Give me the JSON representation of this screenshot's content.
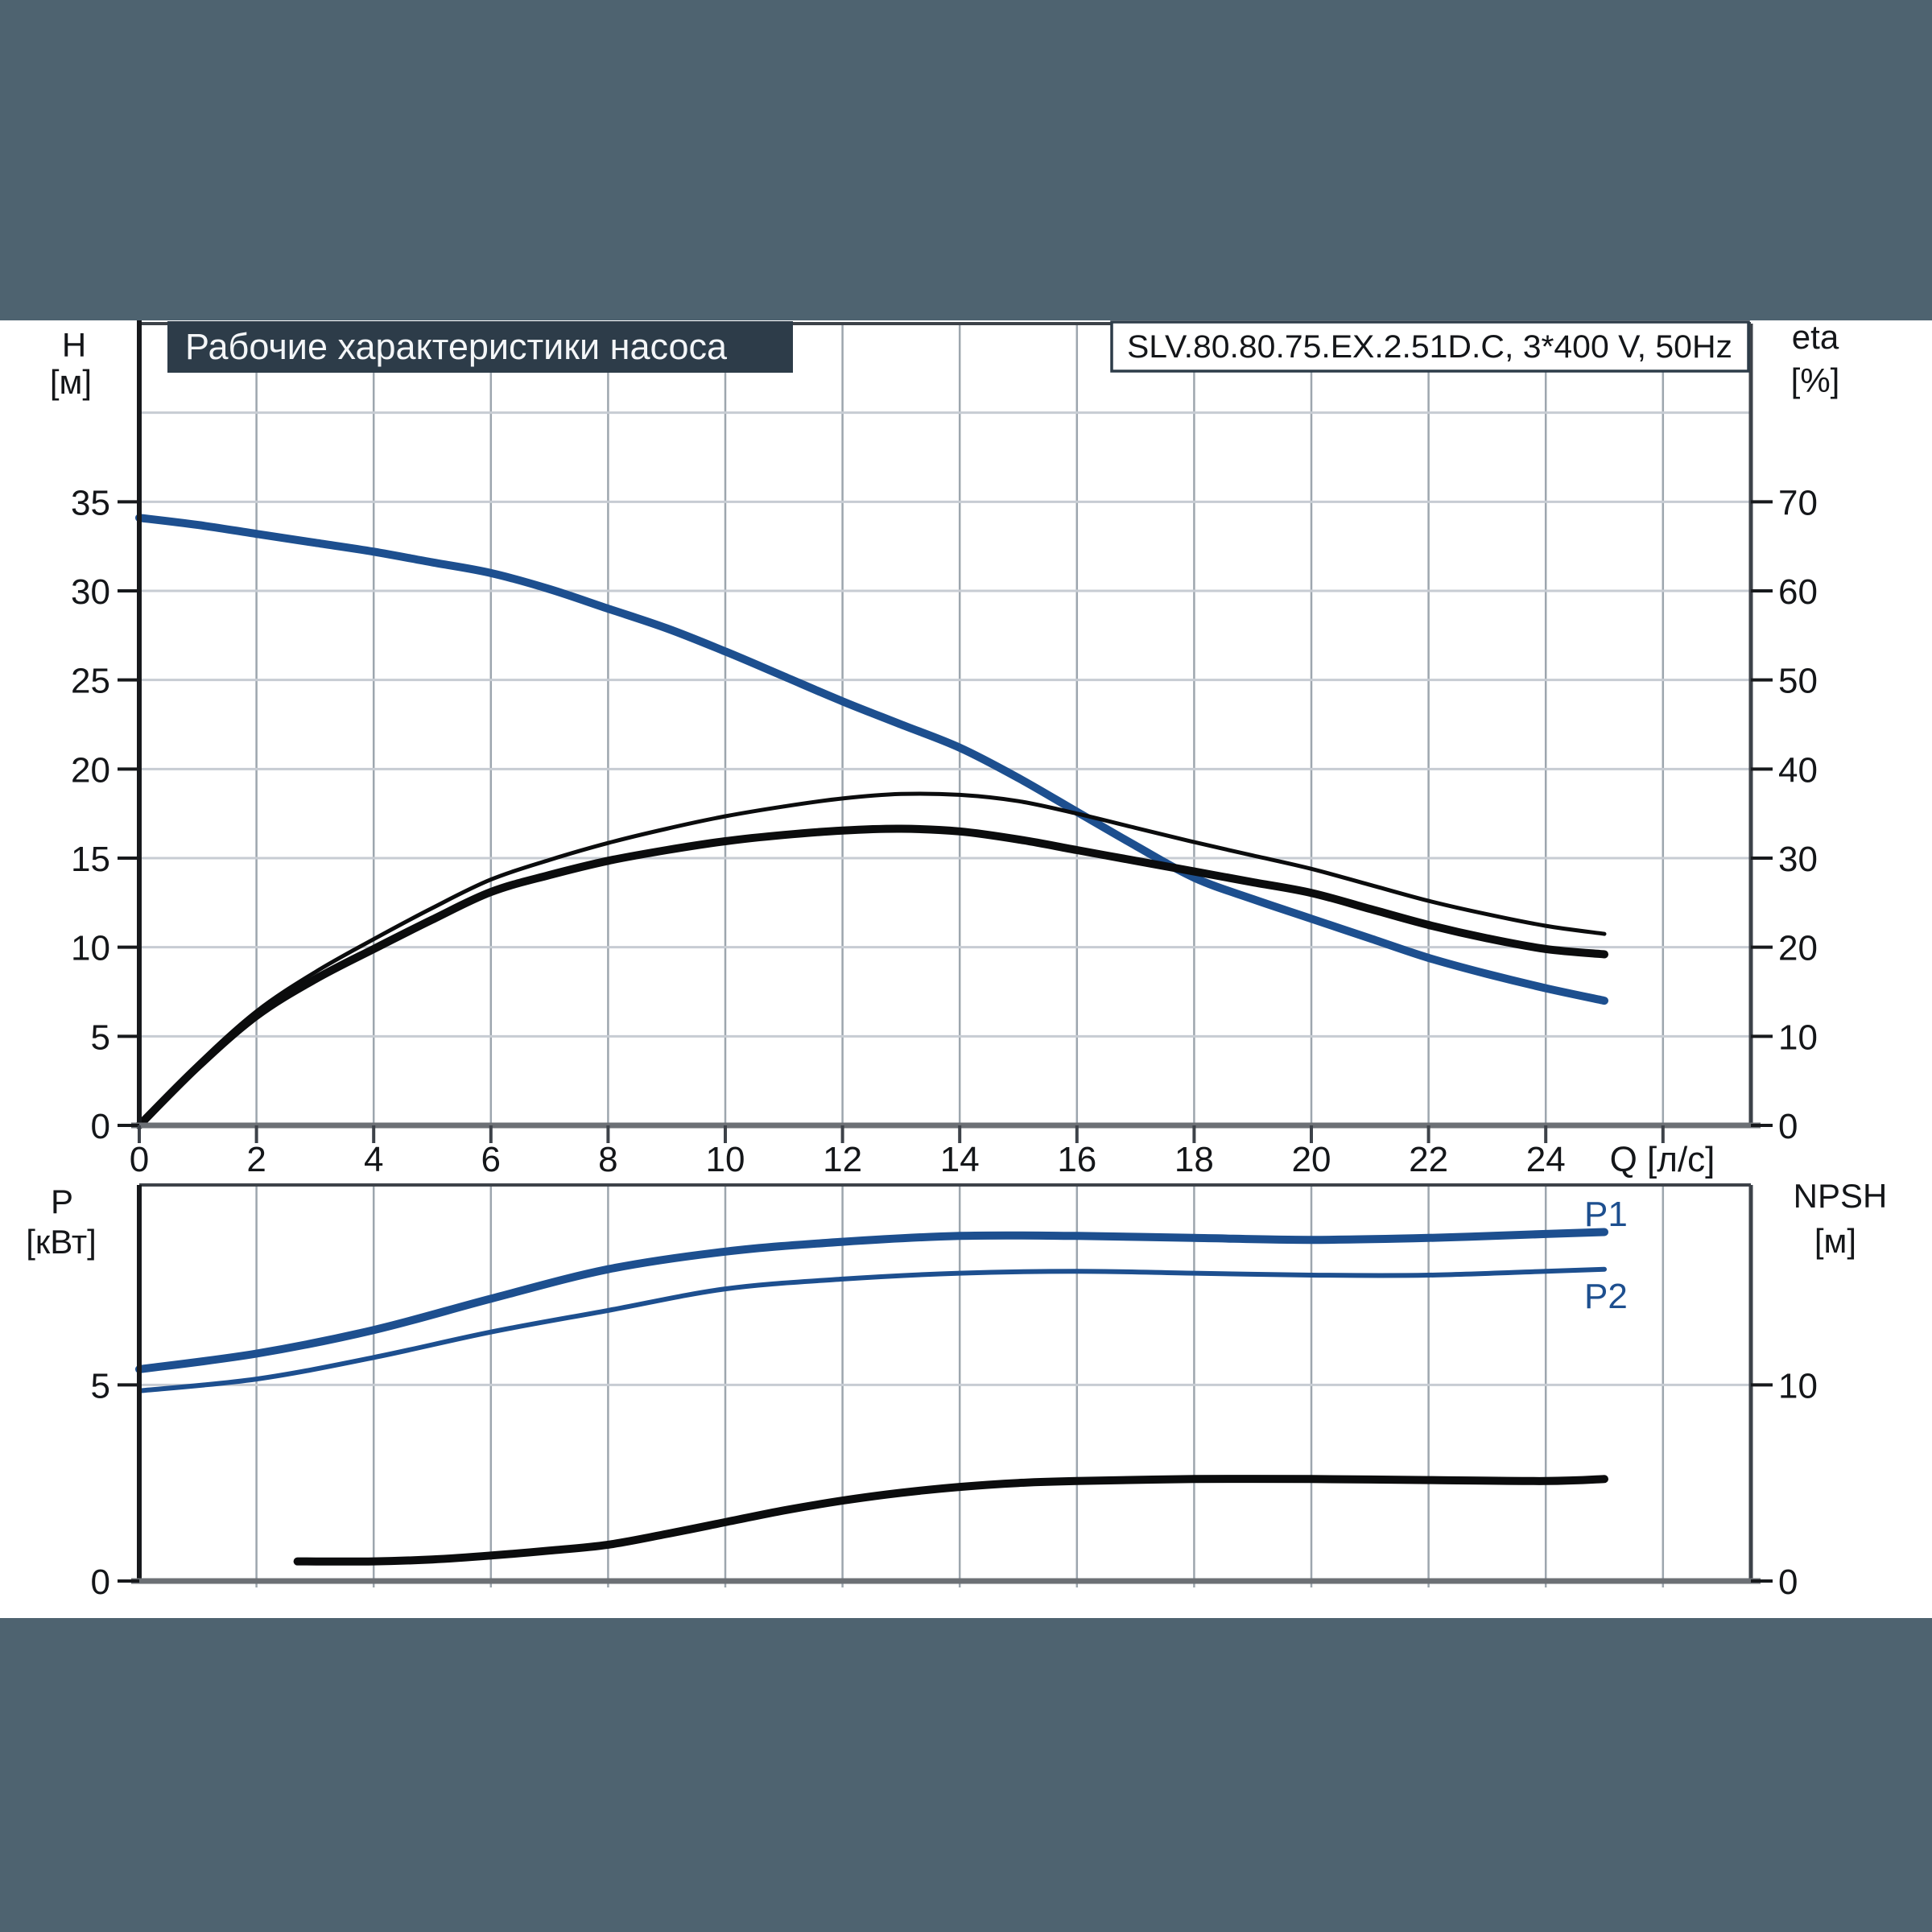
{
  "header": {
    "title": "Рабочие характеристики насоса",
    "pump_model": "SLV.80.80.75.EX.2.51D.C, 3*400 V, 50Hz"
  },
  "colors": {
    "background": "#4e6370",
    "badge": "#2d3c49",
    "panel": "#ffffff",
    "curve_blue": "#1d4f8f",
    "curve_black": "#0b0c0d",
    "grid_h": "#c7ccd3",
    "grid_v": "#9da6ae",
    "frame": "#3d4249",
    "axis_left": "#17191c",
    "axis_bottom": "#6c7075",
    "text": "#141619"
  },
  "chart_data": [
    {
      "id": "head-efficiency",
      "type": "line",
      "x_axis": {
        "label": "Q [л/с]",
        "min": 0,
        "max": 27.5,
        "tick_labels": [
          0,
          2,
          4,
          6,
          8,
          10,
          12,
          14,
          16,
          18,
          20,
          22,
          24
        ]
      },
      "y_left": {
        "name": "H",
        "unit": "[м]",
        "min": 0,
        "max": 45,
        "tick_labels": [
          0,
          5,
          10,
          15,
          20,
          25,
          30,
          35
        ]
      },
      "y_right": {
        "name": "eta",
        "unit": "[%]",
        "min": 0,
        "max": 90,
        "tick_labels": [
          0,
          10,
          20,
          30,
          40,
          50,
          60,
          70
        ]
      },
      "grid": true,
      "series": [
        {
          "name": "H",
          "axis": "left",
          "color": "blue",
          "width": 10,
          "points": [
            [
              0,
              34.1
            ],
            [
              1,
              33.7
            ],
            [
              2,
              33.2
            ],
            [
              3,
              32.7
            ],
            [
              4,
              32.2
            ],
            [
              5,
              31.6
            ],
            [
              6,
              31.0
            ],
            [
              7,
              30.1
            ],
            [
              8,
              29.0
            ],
            [
              9,
              27.9
            ],
            [
              10,
              26.6
            ],
            [
              11,
              25.2
            ],
            [
              12,
              23.8
            ],
            [
              13,
              22.5
            ],
            [
              14,
              21.2
            ],
            [
              15,
              19.5
            ],
            [
              16,
              17.6
            ],
            [
              17,
              15.7
            ],
            [
              18,
              13.9
            ],
            [
              19,
              12.7
            ],
            [
              20,
              11.6
            ],
            [
              21,
              10.5
            ],
            [
              22,
              9.4
            ],
            [
              23,
              8.5
            ],
            [
              24,
              7.7
            ],
            [
              25,
              7.0
            ]
          ]
        },
        {
          "name": "eta1",
          "axis": "right",
          "color": "black",
          "width": 5,
          "points": [
            [
              0,
              0
            ],
            [
              1,
              6.9
            ],
            [
              2,
              12.8
            ],
            [
              3,
              17.2
            ],
            [
              4,
              20.9
            ],
            [
              5,
              24.4
            ],
            [
              6,
              27.6
            ],
            [
              7,
              29.8
            ],
            [
              8,
              31.7
            ],
            [
              9,
              33.3
            ],
            [
              10,
              34.7
            ],
            [
              11,
              35.8
            ],
            [
              12,
              36.7
            ],
            [
              13,
              37.2
            ],
            [
              14,
              37.1
            ],
            [
              15,
              36.4
            ],
            [
              16,
              35.0
            ],
            [
              17,
              33.4
            ],
            [
              18,
              31.8
            ],
            [
              19,
              30.3
            ],
            [
              20,
              28.8
            ],
            [
              21,
              27.0
            ],
            [
              22,
              25.2
            ],
            [
              23,
              23.7
            ],
            [
              24,
              22.4
            ],
            [
              25,
              21.5
            ]
          ]
        },
        {
          "name": "eta2",
          "axis": "right",
          "color": "black",
          "width": 10,
          "points": [
            [
              0,
              0
            ],
            [
              1,
              6.6
            ],
            [
              2,
              12.3
            ],
            [
              3,
              16.4
            ],
            [
              4,
              19.8
            ],
            [
              5,
              23.1
            ],
            [
              6,
              26.2
            ],
            [
              7,
              28.1
            ],
            [
              8,
              29.7
            ],
            [
              9,
              30.9
            ],
            [
              10,
              31.9
            ],
            [
              11,
              32.6
            ],
            [
              12,
              33.1
            ],
            [
              13,
              33.3
            ],
            [
              14,
              33.0
            ],
            [
              15,
              32.1
            ],
            [
              16,
              30.9
            ],
            [
              17,
              29.7
            ],
            [
              18,
              28.5
            ],
            [
              19,
              27.3
            ],
            [
              20,
              26.1
            ],
            [
              21,
              24.3
            ],
            [
              22,
              22.5
            ],
            [
              23,
              21.0
            ],
            [
              24,
              19.8
            ],
            [
              25,
              19.2
            ]
          ]
        }
      ]
    },
    {
      "id": "power-npsh",
      "type": "line",
      "x_axis": {
        "label": "",
        "min": 0,
        "max": 27.5,
        "tick_labels": []
      },
      "y_left": {
        "name": "P",
        "unit": "[кВт]",
        "min": 0,
        "max": 10.1,
        "tick_labels": [
          0,
          5
        ]
      },
      "y_right": {
        "name": "NPSH",
        "unit": "[м]",
        "min": 0,
        "max": 20.2,
        "tick_labels": [
          0,
          10
        ]
      },
      "grid": true,
      "series": [
        {
          "name": "P1",
          "axis": "left",
          "color": "blue",
          "width": 10,
          "points": [
            [
              0,
              5.4
            ],
            [
              2,
              5.8
            ],
            [
              4,
              6.4
            ],
            [
              6,
              7.2
            ],
            [
              8,
              7.95
            ],
            [
              10,
              8.4
            ],
            [
              12,
              8.65
            ],
            [
              14,
              8.8
            ],
            [
              16,
              8.8
            ],
            [
              18,
              8.75
            ],
            [
              20,
              8.7
            ],
            [
              22,
              8.75
            ],
            [
              24,
              8.85
            ],
            [
              25,
              8.9
            ]
          ]
        },
        {
          "name": "P2",
          "axis": "left",
          "color": "blue",
          "width": 6,
          "points": [
            [
              0,
              4.85
            ],
            [
              2,
              5.15
            ],
            [
              4,
              5.7
            ],
            [
              6,
              6.35
            ],
            [
              8,
              6.9
            ],
            [
              10,
              7.45
            ],
            [
              12,
              7.7
            ],
            [
              14,
              7.85
            ],
            [
              16,
              7.9
            ],
            [
              18,
              7.85
            ],
            [
              20,
              7.8
            ],
            [
              22,
              7.8
            ],
            [
              24,
              7.9
            ],
            [
              25,
              7.95
            ]
          ]
        },
        {
          "name": "NPSH",
          "axis": "right",
          "color": "black",
          "width": 10,
          "points": [
            [
              2.7,
              1.0
            ],
            [
              4,
              1.0
            ],
            [
              5,
              1.1
            ],
            [
              6,
              1.3
            ],
            [
              7,
              1.55
            ],
            [
              8,
              1.85
            ],
            [
              9,
              2.4
            ],
            [
              10,
              3.0
            ],
            [
              11,
              3.6
            ],
            [
              12,
              4.1
            ],
            [
              13,
              4.5
            ],
            [
              14,
              4.8
            ],
            [
              15,
              5.0
            ],
            [
              16,
              5.1
            ],
            [
              18,
              5.2
            ],
            [
              20,
              5.2
            ],
            [
              22,
              5.15
            ],
            [
              24,
              5.1
            ],
            [
              25,
              5.2
            ]
          ]
        }
      ]
    }
  ]
}
